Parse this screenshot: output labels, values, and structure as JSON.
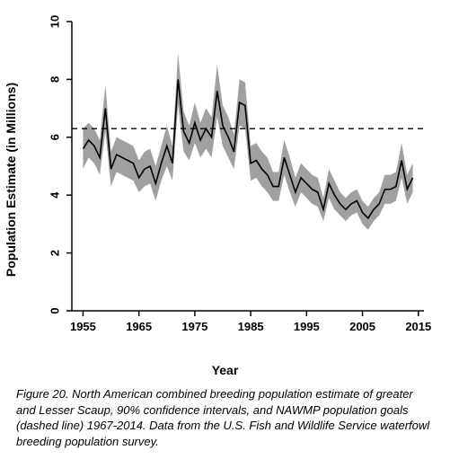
{
  "chart": {
    "type": "line",
    "xlim": [
      1953,
      2016
    ],
    "ylim": [
      0,
      10
    ],
    "xticks": [
      1955,
      1965,
      1975,
      1985,
      1995,
      2005,
      2015
    ],
    "yticks": [
      0,
      2,
      4,
      6,
      8,
      10
    ],
    "xlabel": "Year",
    "ylabel": "Population Estimate (in Millions)",
    "background_color": "#ffffff",
    "axis_color": "#000000",
    "tick_fontsize": 13,
    "label_fontsize": 14,
    "line_color": "#000000",
    "line_width": 1.6,
    "ci_color": "#a0a0a0",
    "ci_opacity": 1.0,
    "goal_line": {
      "value": 6.3,
      "color": "#000000",
      "dash": "6 5",
      "width": 1.4
    },
    "series": {
      "years": [
        1955,
        1956,
        1957,
        1958,
        1959,
        1960,
        1961,
        1962,
        1963,
        1964,
        1965,
        1966,
        1967,
        1968,
        1969,
        1970,
        1971,
        1972,
        1973,
        1974,
        1975,
        1976,
        1977,
        1978,
        1979,
        1980,
        1981,
        1982,
        1983,
        1984,
        1985,
        1986,
        1987,
        1988,
        1989,
        1990,
        1991,
        1992,
        1993,
        1994,
        1995,
        1996,
        1997,
        1998,
        1999,
        2000,
        2001,
        2002,
        2003,
        2004,
        2005,
        2006,
        2007,
        2008,
        2009,
        2010,
        2011,
        2012,
        2013,
        2014
      ],
      "mean": [
        5.6,
        5.9,
        5.7,
        5.3,
        7.0,
        4.9,
        5.4,
        5.3,
        5.2,
        5.1,
        4.6,
        4.9,
        5.0,
        4.4,
        5.1,
        5.7,
        5.1,
        8.0,
        6.2,
        5.8,
        6.5,
        5.9,
        6.3,
        6.0,
        7.6,
        6.4,
        6.0,
        5.5,
        7.2,
        7.1,
        5.1,
        5.2,
        4.9,
        4.7,
        4.3,
        4.3,
        5.3,
        4.7,
        4.1,
        4.6,
        4.4,
        4.2,
        4.1,
        3.5,
        4.4,
        4.0,
        3.7,
        3.5,
        3.7,
        3.8,
        3.4,
        3.2,
        3.5,
        3.7,
        4.2,
        4.2,
        4.3,
        5.2,
        4.2,
        4.6
      ],
      "lower": [
        4.9,
        5.3,
        5.1,
        4.7,
        6.2,
        4.3,
        4.8,
        4.7,
        4.6,
        4.5,
        4.1,
        4.3,
        4.4,
        3.8,
        4.5,
        5.0,
        4.5,
        7.1,
        5.5,
        5.2,
        5.8,
        5.3,
        5.6,
        5.3,
        6.7,
        5.7,
        5.3,
        4.9,
        6.4,
        6.3,
        4.5,
        4.6,
        4.3,
        4.1,
        3.8,
        3.8,
        4.7,
        4.1,
        3.6,
        4.1,
        3.9,
        3.7,
        3.6,
        3.1,
        3.9,
        3.5,
        3.3,
        3.1,
        3.3,
        3.4,
        3.0,
        2.8,
        3.1,
        3.3,
        3.7,
        3.7,
        3.8,
        4.6,
        3.7,
        4.1
      ],
      "upper": [
        6.3,
        6.5,
        6.3,
        5.9,
        7.8,
        5.5,
        6.0,
        5.9,
        5.8,
        5.7,
        5.2,
        5.5,
        5.6,
        5.0,
        5.7,
        6.4,
        5.7,
        8.9,
        6.9,
        6.4,
        7.2,
        6.5,
        7.0,
        6.7,
        8.5,
        7.1,
        6.7,
        6.1,
        8.0,
        7.9,
        5.7,
        5.8,
        5.5,
        5.3,
        4.8,
        4.8,
        5.9,
        5.3,
        4.6,
        5.1,
        4.9,
        4.7,
        4.6,
        3.9,
        4.9,
        4.5,
        4.1,
        3.9,
        4.1,
        4.2,
        3.8,
        3.6,
        3.9,
        4.1,
        4.7,
        4.7,
        4.8,
        5.8,
        4.7,
        5.1
      ]
    }
  },
  "caption": "Figure 20. North American combined breeding population estimate of greater and Lesser Scaup, 90% confidence intervals, and NAWMP population goals (dashed line) 1967-2014. Data from the U.S. Fish and Wildlife Service waterfowl breeding population survey."
}
